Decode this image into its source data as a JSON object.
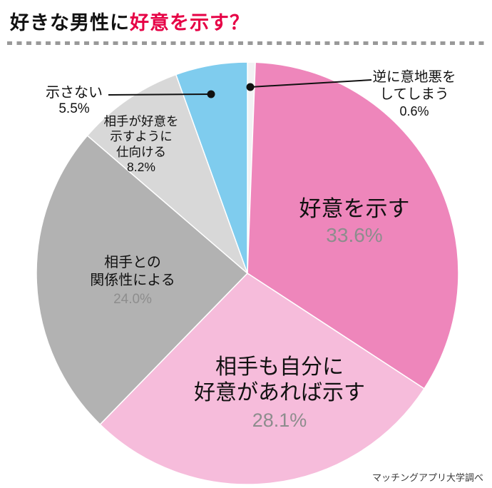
{
  "header": {
    "title_black": "好きな男性に",
    "title_red": "好意を示す？",
    "accent_color": "#e60045"
  },
  "footer": {
    "credit": "マッチングアプリ大学調べ"
  },
  "chart_data": {
    "type": "pie",
    "title": "好きな男性に好意を示す？",
    "unit": "%",
    "start_angle": "top",
    "direction": "clockwise",
    "legend": "none",
    "slices": [
      {
        "label": "逆に意地悪をしてしまう",
        "label_lines": [
          "逆に意地悪を",
          "してしまう"
        ],
        "value": 0.6,
        "pct": "0.6%",
        "color": "#f2f2f4",
        "label_position": "outside-right"
      },
      {
        "label": "好意を示す",
        "label_lines": [
          "好意を示す"
        ],
        "value": 33.6,
        "pct": "33.6%",
        "color": "#ee86bb",
        "label_position": "inside"
      },
      {
        "label": "相手も自分に好意があれば示す",
        "label_lines": [
          "相手も自分に",
          "好意があれば示す"
        ],
        "value": 28.1,
        "pct": "28.1%",
        "color": "#f6bcdb",
        "label_position": "inside"
      },
      {
        "label": "相手との関係性による",
        "label_lines": [
          "相手との",
          "関係性による"
        ],
        "value": 24.0,
        "pct": "24.0%",
        "color": "#b2b2b2",
        "label_position": "inside"
      },
      {
        "label": "相手が好意を示すように仕向ける",
        "label_lines": [
          "相手が好意を",
          "示すように",
          "仕向ける"
        ],
        "value": 8.2,
        "pct": "8.2%",
        "color": "#d8d8d8",
        "label_position": "outside-left"
      },
      {
        "label": "示さない",
        "label_lines": [
          "示さない"
        ],
        "value": 5.5,
        "pct": "5.5%",
        "color": "#7fccee",
        "label_position": "outside-left"
      }
    ]
  }
}
